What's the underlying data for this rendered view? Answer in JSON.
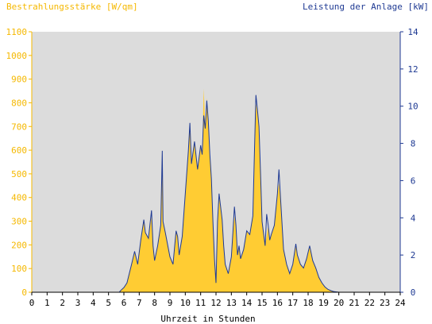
{
  "chart_data": {
    "type": "area",
    "title_left": "Bestrahlungsstärke [W/qm]",
    "title_right": "Leistung der Anlage [kW]",
    "xlabel": "Uhrzeit in Stunden",
    "x_range": [
      0,
      24
    ],
    "x_ticks": [
      "0",
      "1",
      "2",
      "3",
      "4",
      "5",
      "6",
      "7",
      "8",
      "9",
      "10",
      "11",
      "12",
      "13",
      "14",
      "15",
      "16",
      "17",
      "18",
      "19",
      "20",
      "21",
      "22",
      "23",
      "24"
    ],
    "y_left_range": [
      0,
      1100
    ],
    "y_left_ticks": [
      "0",
      "100",
      "200",
      "300",
      "400",
      "500",
      "600",
      "700",
      "800",
      "900",
      "1000",
      "1100"
    ],
    "y_right_range": [
      0,
      14
    ],
    "y_right_ticks": [
      "0",
      "2",
      "4",
      "6",
      "8",
      "10",
      "12",
      "14"
    ],
    "grid": false,
    "colors": {
      "irradiance_fill": "#ffcc33",
      "power_line": "#1f3a93",
      "plot_background": "#dcdcdc",
      "left_axis": "#f5b800",
      "right_axis": "#1f3a93"
    },
    "series": [
      {
        "key": "irradiance",
        "axis": "left",
        "points": [
          [
            0,
            0
          ],
          [
            5.7,
            0
          ],
          [
            5.8,
            8
          ],
          [
            6.0,
            20
          ],
          [
            6.2,
            40
          ],
          [
            6.5,
            120
          ],
          [
            6.7,
            170
          ],
          [
            6.9,
            120
          ],
          [
            7.1,
            220
          ],
          [
            7.3,
            300
          ],
          [
            7.4,
            250
          ],
          [
            7.6,
            230
          ],
          [
            7.8,
            320
          ],
          [
            7.9,
            200
          ],
          [
            8.0,
            130
          ],
          [
            8.2,
            200
          ],
          [
            8.4,
            280
          ],
          [
            8.5,
            600
          ],
          [
            8.55,
            300
          ],
          [
            8.7,
            250
          ],
          [
            9.0,
            150
          ],
          [
            9.2,
            120
          ],
          [
            9.4,
            260
          ],
          [
            9.5,
            240
          ],
          [
            9.6,
            160
          ],
          [
            9.8,
            240
          ],
          [
            10.0,
            420
          ],
          [
            10.2,
            600
          ],
          [
            10.3,
            700
          ],
          [
            10.4,
            540
          ],
          [
            10.6,
            640
          ],
          [
            10.8,
            520
          ],
          [
            11.0,
            620
          ],
          [
            11.1,
            580
          ],
          [
            11.2,
            860
          ],
          [
            11.3,
            700
          ],
          [
            11.4,
            820
          ],
          [
            11.5,
            720
          ],
          [
            11.6,
            580
          ],
          [
            11.7,
            480
          ],
          [
            11.8,
            300
          ],
          [
            11.9,
            140
          ],
          [
            12.0,
            40
          ],
          [
            12.1,
            300
          ],
          [
            12.2,
            400
          ],
          [
            12.3,
            360
          ],
          [
            12.4,
            310
          ],
          [
            12.5,
            200
          ],
          [
            12.6,
            120
          ],
          [
            12.8,
            80
          ],
          [
            13.0,
            150
          ],
          [
            13.1,
            250
          ],
          [
            13.2,
            320
          ],
          [
            13.3,
            280
          ],
          [
            13.4,
            160
          ],
          [
            13.5,
            200
          ],
          [
            13.6,
            140
          ],
          [
            13.8,
            180
          ],
          [
            14.0,
            260
          ],
          [
            14.2,
            240
          ],
          [
            14.4,
            320
          ],
          [
            14.5,
            580
          ],
          [
            14.6,
            800
          ],
          [
            14.7,
            760
          ],
          [
            14.8,
            700
          ],
          [
            14.9,
            500
          ],
          [
            15.0,
            300
          ],
          [
            15.2,
            200
          ],
          [
            15.4,
            280
          ],
          [
            15.5,
            220
          ],
          [
            15.6,
            240
          ],
          [
            15.8,
            280
          ],
          [
            16.0,
            420
          ],
          [
            16.1,
            460
          ],
          [
            16.2,
            400
          ],
          [
            16.4,
            180
          ],
          [
            16.6,
            120
          ],
          [
            16.8,
            80
          ],
          [
            17.0,
            120
          ],
          [
            17.2,
            200
          ],
          [
            17.3,
            160
          ],
          [
            17.5,
            120
          ],
          [
            17.7,
            100
          ],
          [
            17.9,
            140
          ],
          [
            18.1,
            190
          ],
          [
            18.3,
            130
          ],
          [
            18.5,
            100
          ],
          [
            18.7,
            60
          ],
          [
            18.9,
            40
          ],
          [
            19.1,
            22
          ],
          [
            19.3,
            12
          ],
          [
            19.5,
            6
          ],
          [
            19.7,
            2
          ],
          [
            20.0,
            0
          ],
          [
            24,
            0
          ]
        ]
      },
      {
        "key": "power",
        "axis": "right",
        "points": [
          [
            0,
            0
          ],
          [
            5.7,
            0
          ],
          [
            5.8,
            0.1
          ],
          [
            6.0,
            0.25
          ],
          [
            6.2,
            0.5
          ],
          [
            6.5,
            1.5
          ],
          [
            6.7,
            2.2
          ],
          [
            6.9,
            1.5
          ],
          [
            7.1,
            2.8
          ],
          [
            7.3,
            3.9
          ],
          [
            7.4,
            3.2
          ],
          [
            7.6,
            2.9
          ],
          [
            7.8,
            4.4
          ],
          [
            7.9,
            2.5
          ],
          [
            8.0,
            1.7
          ],
          [
            8.2,
            2.5
          ],
          [
            8.4,
            3.6
          ],
          [
            8.5,
            7.6
          ],
          [
            8.55,
            3.8
          ],
          [
            8.7,
            3.2
          ],
          [
            9.0,
            1.9
          ],
          [
            9.2,
            1.5
          ],
          [
            9.4,
            3.3
          ],
          [
            9.5,
            3.0
          ],
          [
            9.6,
            2.0
          ],
          [
            9.8,
            3.0
          ],
          [
            10.0,
            5.3
          ],
          [
            10.2,
            7.6
          ],
          [
            10.3,
            9.1
          ],
          [
            10.4,
            6.9
          ],
          [
            10.6,
            8.1
          ],
          [
            10.8,
            6.6
          ],
          [
            11.0,
            7.9
          ],
          [
            11.1,
            7.4
          ],
          [
            11.2,
            9.5
          ],
          [
            11.3,
            8.8
          ],
          [
            11.4,
            10.3
          ],
          [
            11.5,
            9.2
          ],
          [
            11.6,
            7.4
          ],
          [
            11.7,
            6.1
          ],
          [
            11.8,
            3.8
          ],
          [
            11.9,
            1.8
          ],
          [
            12.0,
            0.5
          ],
          [
            12.1,
            3.8
          ],
          [
            12.2,
            5.3
          ],
          [
            12.3,
            4.6
          ],
          [
            12.4,
            3.9
          ],
          [
            12.5,
            2.5
          ],
          [
            12.6,
            1.5
          ],
          [
            12.8,
            1.0
          ],
          [
            13.0,
            1.9
          ],
          [
            13.1,
            3.2
          ],
          [
            13.2,
            4.6
          ],
          [
            13.3,
            3.6
          ],
          [
            13.4,
            2.0
          ],
          [
            13.5,
            2.5
          ],
          [
            13.6,
            1.8
          ],
          [
            13.8,
            2.3
          ],
          [
            14.0,
            3.3
          ],
          [
            14.2,
            3.1
          ],
          [
            14.4,
            4.1
          ],
          [
            14.5,
            7.4
          ],
          [
            14.6,
            10.6
          ],
          [
            14.7,
            9.8
          ],
          [
            14.8,
            8.9
          ],
          [
            14.9,
            6.4
          ],
          [
            15.0,
            3.8
          ],
          [
            15.2,
            2.5
          ],
          [
            15.3,
            4.2
          ],
          [
            15.4,
            3.6
          ],
          [
            15.5,
            2.8
          ],
          [
            15.6,
            3.1
          ],
          [
            15.8,
            3.6
          ],
          [
            16.0,
            5.3
          ],
          [
            16.1,
            6.6
          ],
          [
            16.2,
            5.1
          ],
          [
            16.4,
            2.3
          ],
          [
            16.6,
            1.5
          ],
          [
            16.8,
            1.0
          ],
          [
            17.0,
            1.5
          ],
          [
            17.2,
            2.6
          ],
          [
            17.3,
            2.0
          ],
          [
            17.5,
            1.5
          ],
          [
            17.7,
            1.3
          ],
          [
            17.9,
            1.8
          ],
          [
            18.1,
            2.5
          ],
          [
            18.3,
            1.7
          ],
          [
            18.5,
            1.3
          ],
          [
            18.7,
            0.8
          ],
          [
            18.9,
            0.5
          ],
          [
            19.1,
            0.28
          ],
          [
            19.3,
            0.15
          ],
          [
            19.5,
            0.08
          ],
          [
            19.7,
            0.03
          ],
          [
            20.0,
            0
          ],
          [
            24,
            0
          ]
        ]
      }
    ]
  }
}
